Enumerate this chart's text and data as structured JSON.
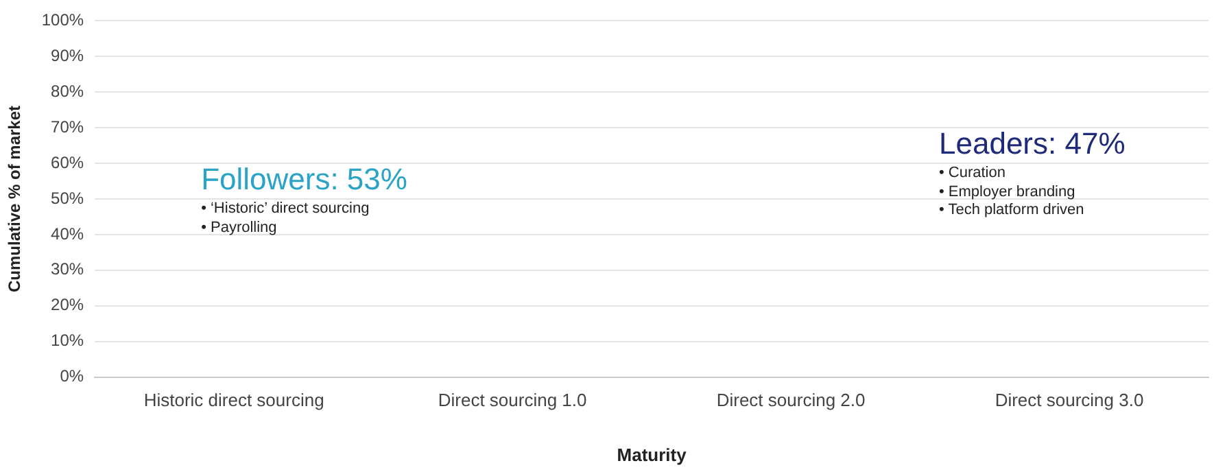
{
  "chart_data": {
    "type": "bar",
    "categories": [
      "Historic direct sourcing",
      "Direct sourcing 1.0",
      "Direct sourcing 2.0",
      "Direct sourcing 3.0"
    ],
    "values": [
      null,
      null,
      null,
      null
    ],
    "xlabel": "Maturity",
    "ylabel": "Cumulative % of market",
    "ylim": [
      0,
      100
    ],
    "yticks": [
      {
        "value": 0,
        "label": "0%"
      },
      {
        "value": 10,
        "label": "10%"
      },
      {
        "value": 20,
        "label": "20%"
      },
      {
        "value": 30,
        "label": "30%"
      },
      {
        "value": 40,
        "label": "40%"
      },
      {
        "value": 50,
        "label": "50%"
      },
      {
        "value": 60,
        "label": "60%"
      },
      {
        "value": 70,
        "label": "70%"
      },
      {
        "value": 80,
        "label": "80%"
      },
      {
        "value": 90,
        "label": "90%"
      },
      {
        "value": 100,
        "label": "100%"
      }
    ],
    "grid": "y",
    "annotations": [
      "Followers: 53%",
      "• ‘Historic’ direct sourcing\n• Payrolling",
      "Leaders: 47%",
      "• Curation\n• Employer branding\n• Tech platform driven"
    ]
  }
}
